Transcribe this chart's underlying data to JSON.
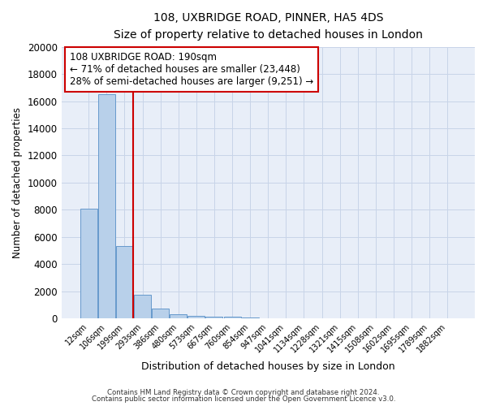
{
  "title_line1": "108, UXBRIDGE ROAD, PINNER, HA5 4DS",
  "title_line2": "Size of property relative to detached houses in London",
  "xlabel": "Distribution of detached houses by size in London",
  "ylabel": "Number of detached properties",
  "bar_labels": [
    "12sqm",
    "106sqm",
    "199sqm",
    "293sqm",
    "386sqm",
    "480sqm",
    "573sqm",
    "667sqm",
    "760sqm",
    "854sqm",
    "947sqm",
    "1041sqm",
    "1134sqm",
    "1228sqm",
    "1321sqm",
    "1415sqm",
    "1508sqm",
    "1602sqm",
    "1695sqm",
    "1789sqm",
    "1882sqm"
  ],
  "bar_values": [
    8100,
    16500,
    5300,
    1750,
    700,
    300,
    200,
    150,
    100,
    80,
    0,
    0,
    0,
    0,
    0,
    0,
    0,
    0,
    0,
    0,
    0
  ],
  "bar_color": "#b8d0ea",
  "bar_edge_color": "#6699cc",
  "vline_color": "#cc0000",
  "vline_pos": 2.5,
  "ylim": [
    0,
    20000
  ],
  "yticks": [
    0,
    2000,
    4000,
    6000,
    8000,
    10000,
    12000,
    14000,
    16000,
    18000,
    20000
  ],
  "annotation_text_line1": "108 UXBRIDGE ROAD: 190sqm",
  "annotation_text_line2": "← 71% of detached houses are smaller (23,448)",
  "annotation_text_line3": "28% of semi-detached houses are larger (9,251) →",
  "footer_line1": "Contains HM Land Registry data © Crown copyright and database right 2024.",
  "footer_line2": "Contains public sector information licensed under the Open Government Licence v3.0.",
  "bg_color": "#ffffff",
  "plot_bg_color": "#e8eef8",
  "grid_color": "#c8d4e8"
}
